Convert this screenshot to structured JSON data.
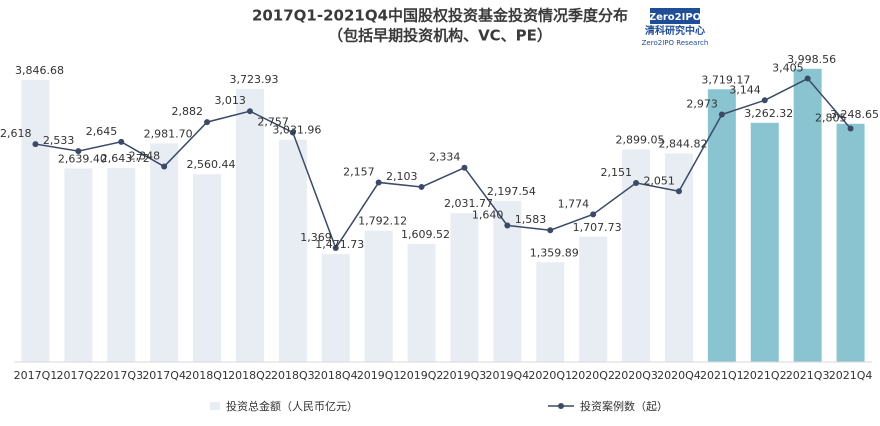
{
  "chart_data": {
    "type": "bar-line",
    "title": "2017Q1-2021Q4中国股权投资基金投资情况季度分布",
    "subtitle": "（包括早期投资机构、VC、PE）",
    "logo": {
      "brand": "Zero2IPO",
      "name": "清科研究中心",
      "sub": "Zero2IPO Research"
    },
    "categories": [
      "2017Q1",
      "2017Q2",
      "2017Q3",
      "2017Q4",
      "2018Q1",
      "2018Q2",
      "2018Q3",
      "2018Q4",
      "2019Q1",
      "2019Q2",
      "2019Q3",
      "2019Q4",
      "2020Q1",
      "2020Q2",
      "2020Q3",
      "2020Q4",
      "2021Q1",
      "2021Q2",
      "2021Q3",
      "2021Q4"
    ],
    "series": [
      {
        "name": "投资总金额（人民币亿元）",
        "type": "bar",
        "color": "#e8ecf3",
        "colors": [
          "#e8ecf3",
          "#e8ecf3",
          "#e8ecf3",
          "#e8ecf3",
          "#e8ecf3",
          "#e8ecf3",
          "#e8ecf3",
          "#e8ecf3",
          "#e8ecf3",
          "#e8ecf3",
          "#e8ecf3",
          "#e8ecf3",
          "#e8ecf3",
          "#e8ecf3",
          "#e8ecf3",
          "#e8ecf3",
          "#8ac4d0",
          "#8ac4d0",
          "#8ac4d0",
          "#8ac4d0"
        ],
        "values": [
          3846.68,
          2639.4,
          2643.72,
          2981.7,
          2560.44,
          3723.93,
          3031.96,
          1471.73,
          1792.12,
          1609.52,
          2031.77,
          2197.54,
          1359.89,
          1707.73,
          2899.05,
          2844.82,
          3719.17,
          3262.32,
          3998.56,
          3248.65
        ],
        "value_labels": [
          "3,846.68",
          "2,639.40",
          "2,643.72",
          "2,981.70",
          "2,560.44",
          "3,723.93",
          "3,031.96",
          "1,471.73",
          "1,792.12",
          "1,609.52",
          "2,031.77",
          "2,197.54",
          "1,359.89",
          "1,707.73",
          "2,899.05",
          "2,844.82",
          "3,719.17",
          "3,262.32",
          "3,998.56",
          "3,248.65"
        ]
      },
      {
        "name": "投资案例数（起）",
        "type": "line",
        "axis": "y2",
        "color": "#3b4a66",
        "values": [
          2618,
          2533,
          2645,
          2348,
          2882,
          3013,
          2757,
          1369,
          2157,
          2103,
          2334,
          1640,
          1583,
          1774,
          2151,
          2051,
          2973,
          3144,
          3405,
          2805
        ],
        "value_labels": [
          "2,618",
          "2,533",
          "2,645",
          "2,348",
          "2,882",
          "3,013",
          "2,757",
          "1,369",
          "2,157",
          "2,103",
          "2,334",
          "1,640",
          "1,583",
          "1,774",
          "2,151",
          "2,051",
          "2,973",
          "3,144",
          "3,405",
          "2,805"
        ]
      }
    ],
    "ylim": [
      0,
      4200
    ],
    "y2lim": [
      0,
      3700
    ],
    "grid": false
  }
}
